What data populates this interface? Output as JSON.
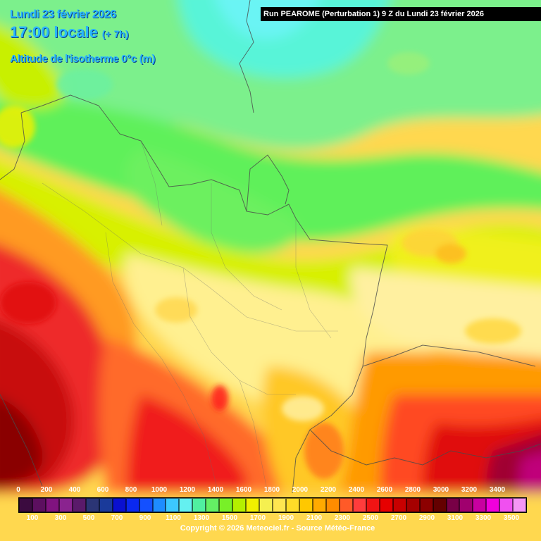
{
  "header": {
    "date": "Lundi 23 février 2026",
    "time": "17:00 locale",
    "lead": "(+ 7h)",
    "parameter": "Altitude de l'isotherme 0°c (m)"
  },
  "run_info": "Run PEAROME (Perturbation 1) 9 Z du Lundi 23 février 2026",
  "legend": {
    "top_labels": [
      "0",
      "200",
      "400",
      "600",
      "800",
      "1000",
      "1200",
      "1400",
      "1600",
      "1800",
      "2000",
      "2200",
      "2400",
      "2600",
      "2800",
      "3000",
      "3200",
      "3400"
    ],
    "bottom_labels": [
      "100",
      "300",
      "500",
      "700",
      "900",
      "1100",
      "1300",
      "1500",
      "1700",
      "1900",
      "2100",
      "2300",
      "2500",
      "2700",
      "2900",
      "3100",
      "3300",
      "3500"
    ],
    "colors": [
      "#3b0b3f",
      "#5c0f5f",
      "#80137f",
      "#8a238f",
      "#5a1a6a",
      "#2b3575",
      "#1a3a9a",
      "#0a10d0",
      "#0a28f0",
      "#1450ff",
      "#1e8cff",
      "#3cc8ff",
      "#64f0f0",
      "#50f0a0",
      "#64f064",
      "#78f028",
      "#b4f000",
      "#f0f000",
      "#f5f050",
      "#ffe650",
      "#ffdc28",
      "#ffc800",
      "#ffaa00",
      "#ff8c00",
      "#ff5a28",
      "#ff3c3c",
      "#f01414",
      "#e60000",
      "#c80000",
      "#a50000",
      "#8c0000",
      "#640000",
      "#780046",
      "#a0006e",
      "#c800a0",
      "#f000dc",
      "#f050f0",
      "#f496f4"
    ]
  },
  "copyright": "Copyright © 2026 Meteociel.fr - Source Météo-France"
}
